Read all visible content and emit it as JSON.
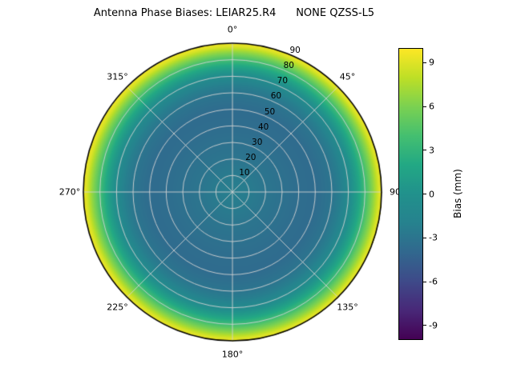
{
  "chart_data": {
    "type": "heatmap",
    "projection": "polar",
    "title": "Antenna Phase Biases: LEIAR25.R4      NONE QZSS-L5",
    "theta_ticks": [
      {
        "angle_deg": 0,
        "label": "0°"
      },
      {
        "angle_deg": 45,
        "label": "45°"
      },
      {
        "angle_deg": 90,
        "label": "90"
      },
      {
        "angle_deg": 135,
        "label": "135°"
      },
      {
        "angle_deg": 180,
        "label": "180°"
      },
      {
        "angle_deg": 225,
        "label": "225°"
      },
      {
        "angle_deg": 270,
        "label": "270°"
      },
      {
        "angle_deg": 315,
        "label": "315°"
      }
    ],
    "radial_axis": {
      "label_angle_deg": 22.5,
      "tick_values": [
        10,
        20,
        30,
        40,
        50,
        60,
        70,
        80,
        90
      ],
      "range": [
        0,
        90
      ]
    },
    "radial_profile": {
      "zenith_deg": [
        0,
        10,
        20,
        30,
        40,
        50,
        60,
        65,
        70,
        75,
        80,
        85,
        88,
        90
      ],
      "bias_mm": [
        -2.2,
        -2.5,
        -3.0,
        -3.3,
        -3.6,
        -3.7,
        -3.0,
        -2.2,
        -0.8,
        1.2,
        3.8,
        6.8,
        8.8,
        9.6
      ]
    },
    "colormap": {
      "name": "viridis",
      "vmin": -10,
      "vmax": 10,
      "stops": [
        "#440154",
        "#482878",
        "#3e4a89",
        "#31688e",
        "#26828e",
        "#21918c",
        "#22a884",
        "#44bf70",
        "#7ad151",
        "#bddf26",
        "#fde725"
      ]
    },
    "colorbar": {
      "label": "Bias (mm)",
      "ticks": [
        9,
        6,
        3,
        0,
        -3,
        -6,
        -9
      ]
    },
    "grid": {
      "color": "#d2d2d2",
      "ring_step_deg": 10,
      "spoke_step_deg": 45,
      "outline_color": "#000000"
    }
  }
}
